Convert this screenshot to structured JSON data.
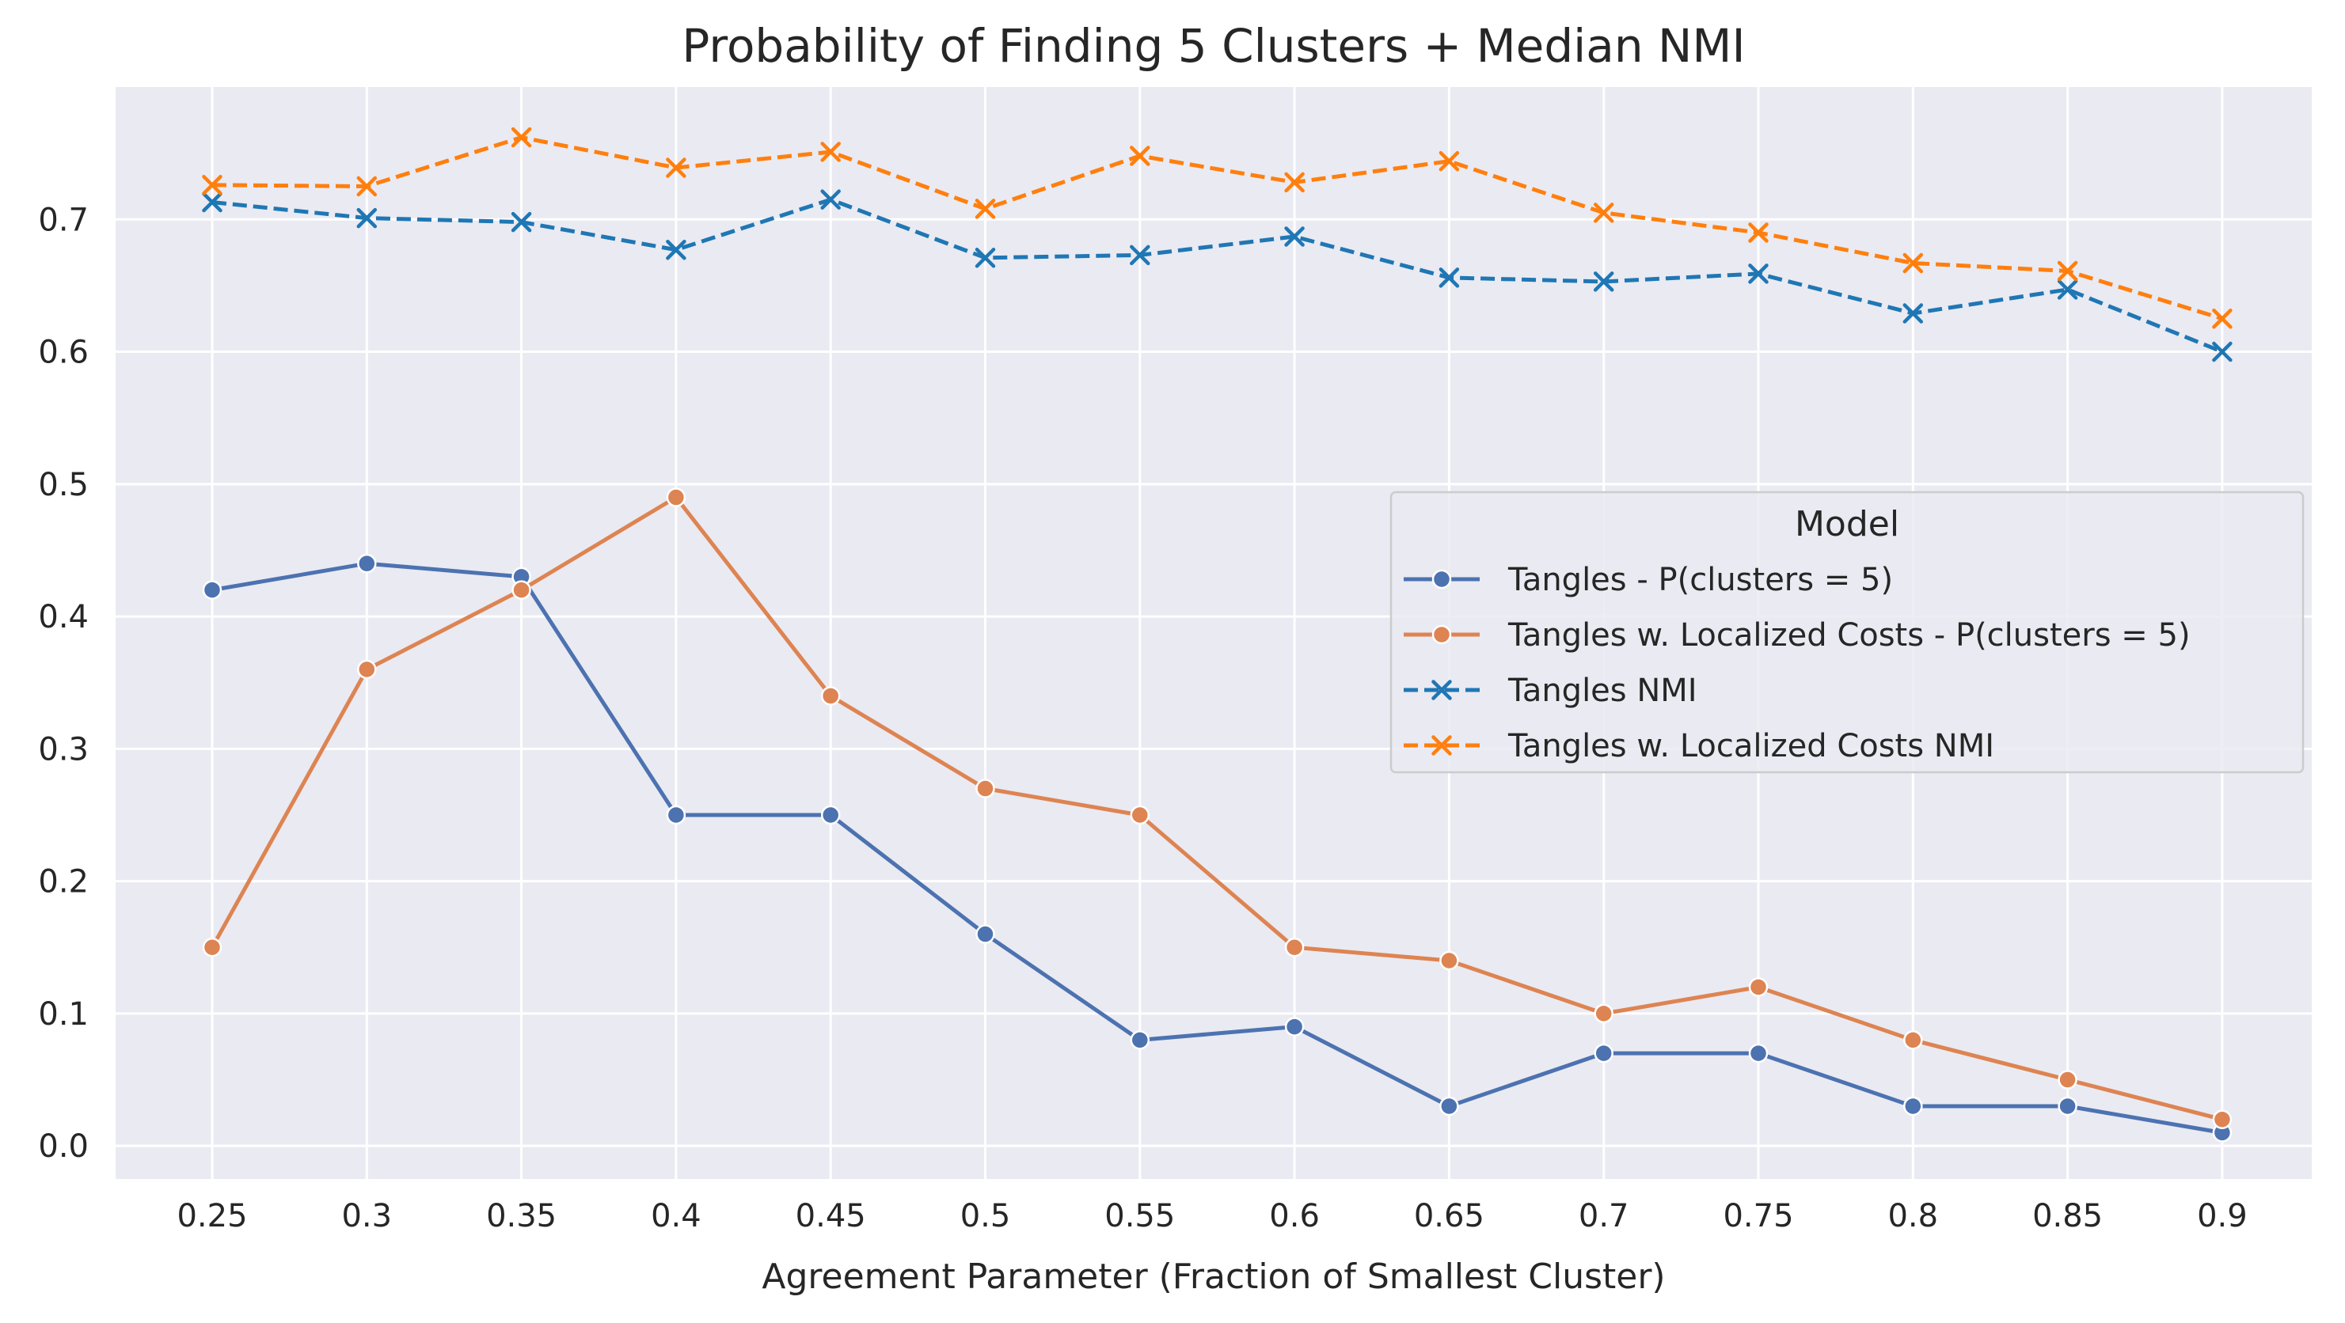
{
  "chart_data": {
    "type": "line",
    "title": "Probability of Finding 5 Clusters + Median NMI",
    "xlabel": "Agreement Parameter (Fraction of Smallest Cluster)",
    "ylabel": "",
    "categories": [
      "0.25",
      "0.3",
      "0.35",
      "0.4",
      "0.45",
      "0.5",
      "0.55",
      "0.6",
      "0.65",
      "0.7",
      "0.75",
      "0.8",
      "0.85",
      "0.9"
    ],
    "y_ticks": [
      "0.0",
      "0.1",
      "0.2",
      "0.3",
      "0.4",
      "0.5",
      "0.6",
      "0.7"
    ],
    "ylim": [
      -0.025,
      0.8
    ],
    "grid": true,
    "legend": {
      "title": "Model",
      "placement": "center-right"
    },
    "series": [
      {
        "name": "Tangles - P(clusters = 5)",
        "color": "#4c72b0",
        "marker": "circle",
        "dashed": false,
        "values": [
          0.42,
          0.44,
          0.43,
          0.25,
          0.25,
          0.16,
          0.08,
          0.09,
          0.03,
          0.07,
          0.07,
          0.03,
          0.03,
          0.01
        ]
      },
      {
        "name": "Tangles w. Localized Costs - P(clusters = 5)",
        "color": "#dd8452",
        "marker": "circle",
        "dashed": false,
        "values": [
          0.15,
          0.36,
          0.42,
          0.49,
          0.34,
          0.27,
          0.25,
          0.15,
          0.14,
          0.1,
          0.12,
          0.08,
          0.05,
          0.02
        ]
      },
      {
        "name": "Tangles NMI",
        "color": "#1f77b4",
        "marker": "x",
        "dashed": true,
        "values": [
          0.713,
          0.701,
          0.698,
          0.677,
          0.715,
          0.671,
          0.673,
          0.687,
          0.656,
          0.653,
          0.659,
          0.629,
          0.647,
          0.6
        ]
      },
      {
        "name": "Tangles w. Localized Costs NMI",
        "color": "#ff7f0e",
        "marker": "x",
        "dashed": true,
        "values": [
          0.726,
          0.725,
          0.762,
          0.739,
          0.751,
          0.708,
          0.748,
          0.728,
          0.744,
          0.705,
          0.69,
          0.667,
          0.661,
          0.625
        ]
      }
    ]
  }
}
